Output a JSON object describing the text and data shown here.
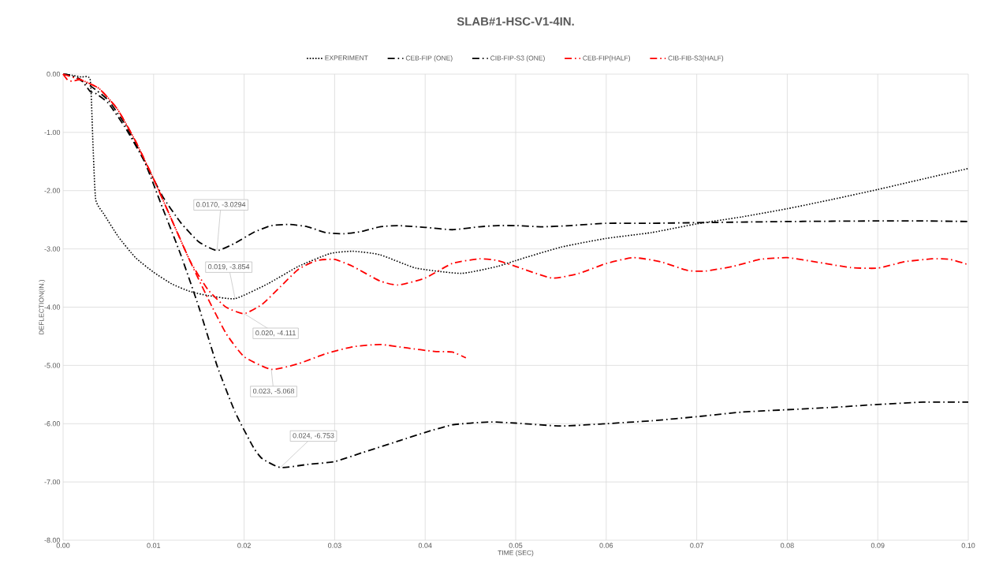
{
  "chart_data": {
    "type": "line",
    "title": "SLAB#1-HSC-V1-4IN.",
    "xlabel": "TIME (SEC)",
    "ylabel": "DEFLECTION(IN.)",
    "xlim": [
      0,
      0.1
    ],
    "ylim": [
      -8,
      0
    ],
    "xticks": [
      {
        "value": 0,
        "label": "0.00"
      },
      {
        "value": 0.01,
        "label": "0.01"
      },
      {
        "value": 0.02,
        "label": "0.02"
      },
      {
        "value": 0.03,
        "label": "0.03"
      },
      {
        "value": 0.04,
        "label": "0.04"
      },
      {
        "value": 0.05,
        "label": "0.05"
      },
      {
        "value": 0.06,
        "label": "0.06"
      },
      {
        "value": 0.07,
        "label": "0.07"
      },
      {
        "value": 0.08,
        "label": "0.08"
      },
      {
        "value": 0.09,
        "label": "0.09"
      },
      {
        "value": 0.1,
        "label": "0.10"
      }
    ],
    "yticks": [
      {
        "value": 0,
        "label": "0.00"
      },
      {
        "value": -1,
        "label": "-1.00"
      },
      {
        "value": -2,
        "label": "-2.00"
      },
      {
        "value": -3,
        "label": "-3.00"
      },
      {
        "value": -4,
        "label": "-4.00"
      },
      {
        "value": -5,
        "label": "-5.00"
      },
      {
        "value": -6,
        "label": "-6.00"
      },
      {
        "value": -7,
        "label": "-7.00"
      },
      {
        "value": -8,
        "label": "-8.00"
      }
    ],
    "grid": true,
    "legend": "top",
    "marker": "none",
    "series": [
      {
        "name": "EXPERIMENT",
        "color": "#000000",
        "line_style": "dotted",
        "x": [
          0,
          0.001,
          0.002,
          0.003,
          0.0033,
          0.0036,
          0.0045,
          0.0061,
          0.008,
          0.01,
          0.012,
          0.014,
          0.016,
          0.019,
          0.0226,
          0.026,
          0.0295,
          0.032,
          0.035,
          0.039,
          0.044,
          0.048,
          0.05,
          0.055,
          0.06,
          0.065,
          0.07,
          0.075,
          0.08,
          0.085,
          0.09,
          0.095,
          0.1
        ],
        "values": [
          0,
          -0.02,
          -0.05,
          -0.1,
          -1.2,
          -2.15,
          -2.4,
          -2.79,
          -3.15,
          -3.4,
          -3.6,
          -3.73,
          -3.8,
          -3.854,
          -3.6,
          -3.3,
          -3.08,
          -3.04,
          -3.1,
          -3.33,
          -3.42,
          -3.3,
          -3.2,
          -2.97,
          -2.82,
          -2.72,
          -2.57,
          -2.45,
          -2.31,
          -2.15,
          -1.98,
          -1.8,
          -1.62
        ]
      },
      {
        "name": "CEB-FIP  (ONE)",
        "color": "#000000",
        "line_style": "dashdot",
        "x": [
          0,
          0.001,
          0.003,
          0.005,
          0.007,
          0.009,
          0.011,
          0.013,
          0.015,
          0.017,
          0.019,
          0.021,
          0.022,
          0.024,
          0.027,
          0.03,
          0.033,
          0.037,
          0.04,
          0.043,
          0.047,
          0.05,
          0.055,
          0.06,
          0.065,
          0.07,
          0.075,
          0.08,
          0.085,
          0.09,
          0.095,
          0.1
        ],
        "values": [
          0,
          -0.03,
          -0.2,
          -0.45,
          -0.9,
          -1.5,
          -2.3,
          -3.1,
          -4.0,
          -5.0,
          -5.8,
          -6.4,
          -6.6,
          -6.753,
          -6.7,
          -6.65,
          -6.5,
          -6.3,
          -6.15,
          -6.02,
          -5.97,
          -5.99,
          -6.04,
          -6.0,
          -5.95,
          -5.88,
          -5.8,
          -5.76,
          -5.72,
          -5.67,
          -5.63,
          -5.63
        ]
      },
      {
        "name": "CIB-FIP-S3  (ONE)",
        "color": "#000000",
        "line_style": "dashdot",
        "x": [
          0,
          0.001,
          0.002,
          0.003,
          0.0035,
          0.005,
          0.007,
          0.009,
          0.011,
          0.013,
          0.015,
          0.017,
          0.019,
          0.021,
          0.023,
          0.025,
          0.027,
          0.029,
          0.031,
          0.033,
          0.035,
          0.037,
          0.04,
          0.043,
          0.046,
          0.048,
          0.05,
          0.053,
          0.056,
          0.06,
          0.065,
          0.07,
          0.08,
          0.09,
          0.095,
          0.1
        ],
        "values": [
          0,
          -0.03,
          -0.1,
          -0.3,
          -0.32,
          -0.5,
          -0.95,
          -1.5,
          -2.1,
          -2.55,
          -2.88,
          -3.0294,
          -2.9,
          -2.72,
          -2.6,
          -2.58,
          -2.62,
          -2.72,
          -2.74,
          -2.7,
          -2.62,
          -2.6,
          -2.63,
          -2.67,
          -2.62,
          -2.6,
          -2.6,
          -2.62,
          -2.6,
          -2.56,
          -2.56,
          -2.55,
          -2.53,
          -2.52,
          -2.52,
          -2.53
        ]
      },
      {
        "name": "CEB-FIP(HALF)",
        "color": "#ff0000",
        "line_style": "dashdot",
        "x": [
          0,
          0.002,
          0.004,
          0.006,
          0.008,
          0.01,
          0.012,
          0.014,
          0.016,
          0.018,
          0.02,
          0.023,
          0.026,
          0.029,
          0.032,
          0.035,
          0.038,
          0.041,
          0.043,
          0.0445
        ],
        "values": [
          0,
          -0.1,
          -0.25,
          -0.6,
          -1.15,
          -1.8,
          -2.5,
          -3.2,
          -3.85,
          -4.45,
          -4.85,
          -5.068,
          -4.97,
          -4.8,
          -4.68,
          -4.64,
          -4.7,
          -4.76,
          -4.77,
          -4.87
        ]
      },
      {
        "name": "CIB-FIB-S3(HALF)",
        "color": "#ff0000",
        "line_style": "dashdot",
        "x": [
          0,
          0.0005,
          0.001,
          0.002,
          0.004,
          0.006,
          0.008,
          0.01,
          0.012,
          0.014,
          0.016,
          0.018,
          0.02,
          0.022,
          0.024,
          0.026,
          0.028,
          0.03,
          0.032,
          0.035,
          0.037,
          0.04,
          0.043,
          0.046,
          0.048,
          0.05,
          0.054,
          0.057,
          0.06,
          0.063,
          0.066,
          0.069,
          0.071,
          0.074,
          0.077,
          0.08,
          0.083,
          0.087,
          0.09,
          0.093,
          0.096,
          0.098,
          0.1
        ],
        "values": [
          0,
          -0.1,
          -0.12,
          -0.1,
          -0.25,
          -0.6,
          -1.15,
          -1.8,
          -2.5,
          -3.2,
          -3.7,
          -4.0,
          -4.111,
          -3.95,
          -3.65,
          -3.35,
          -3.2,
          -3.18,
          -3.3,
          -3.55,
          -3.62,
          -3.5,
          -3.25,
          -3.17,
          -3.2,
          -3.3,
          -3.5,
          -3.42,
          -3.25,
          -3.15,
          -3.22,
          -3.37,
          -3.38,
          -3.3,
          -3.18,
          -3.15,
          -3.22,
          -3.32,
          -3.33,
          -3.22,
          -3.17,
          -3.18,
          -3.27
        ]
      }
    ],
    "annotations": [
      {
        "text": "0.0170, -3.0294",
        "x": 0.017,
        "y": -3.0294
      },
      {
        "text": "0.019, -3.854",
        "x": 0.019,
        "y": -3.854
      },
      {
        "text": "0.020, -4.111",
        "x": 0.02,
        "y": -4.111
      },
      {
        "text": "0.023, -5.068",
        "x": 0.023,
        "y": -5.068
      },
      {
        "text": "0.024, -6.753",
        "x": 0.024,
        "y": -6.753
      }
    ]
  }
}
